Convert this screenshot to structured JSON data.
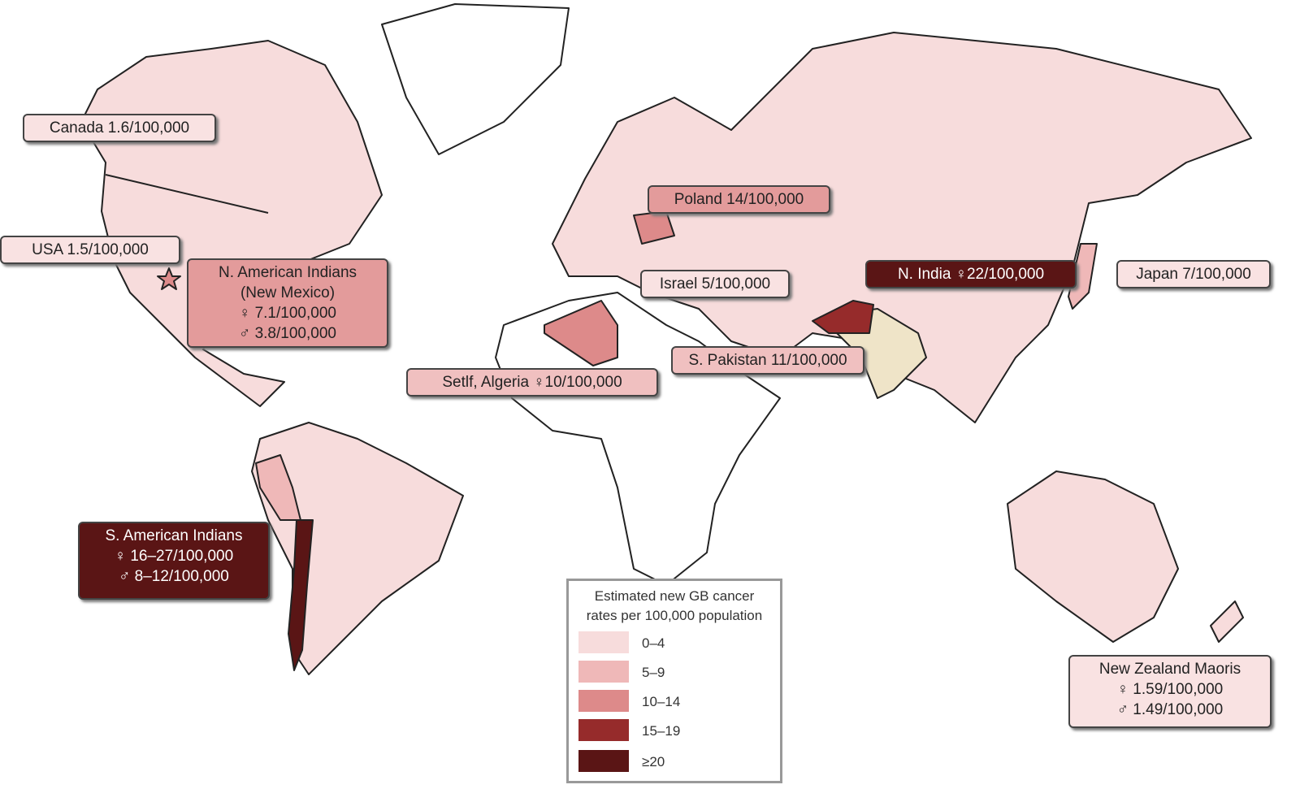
{
  "annotations": [
    {
      "lines": [
        "Canada 1.6/100,000"
      ]
    },
    {
      "lines": [
        "USA 1.5/100,000"
      ]
    },
    {
      "lines": [
        "N. American Indians",
        "(New Mexico)",
        "♀ 7.1/100,000",
        "♂ 3.8/100,000"
      ]
    },
    {
      "lines": [
        "Poland 14/100,000"
      ]
    },
    {
      "lines": [
        "Israel 5/100,000"
      ]
    },
    {
      "lines": [
        "N. India ♀22/100,000"
      ]
    },
    {
      "lines": [
        "Japan 7/100,000"
      ]
    },
    {
      "lines": [
        "S. Pakistan 11/100,000"
      ]
    },
    {
      "lines": [
        "Setlf, Algeria ♀10/100,000"
      ]
    },
    {
      "lines": [
        "S. American Indians",
        "♀ 16–27/100,000",
        "♂ 8–12/100,000"
      ]
    },
    {
      "lines": [
        "New Zealand Maoris",
        "♀ 1.59/100,000",
        "♂ 1.49/100,000"
      ]
    }
  ],
  "legend": {
    "title_lines": [
      "Estimated new GB cancer",
      "rates per 100,000 population"
    ],
    "items": [
      {
        "label": "0–4",
        "color": "#f7dcdc"
      },
      {
        "label": "5–9",
        "color": "#efb8b8"
      },
      {
        "label": "10–14",
        "color": "#dd8a8a"
      },
      {
        "label": "15–19",
        "color": "#962b2b"
      },
      {
        "label": "≥20",
        "color": "#5a1515"
      }
    ]
  }
}
